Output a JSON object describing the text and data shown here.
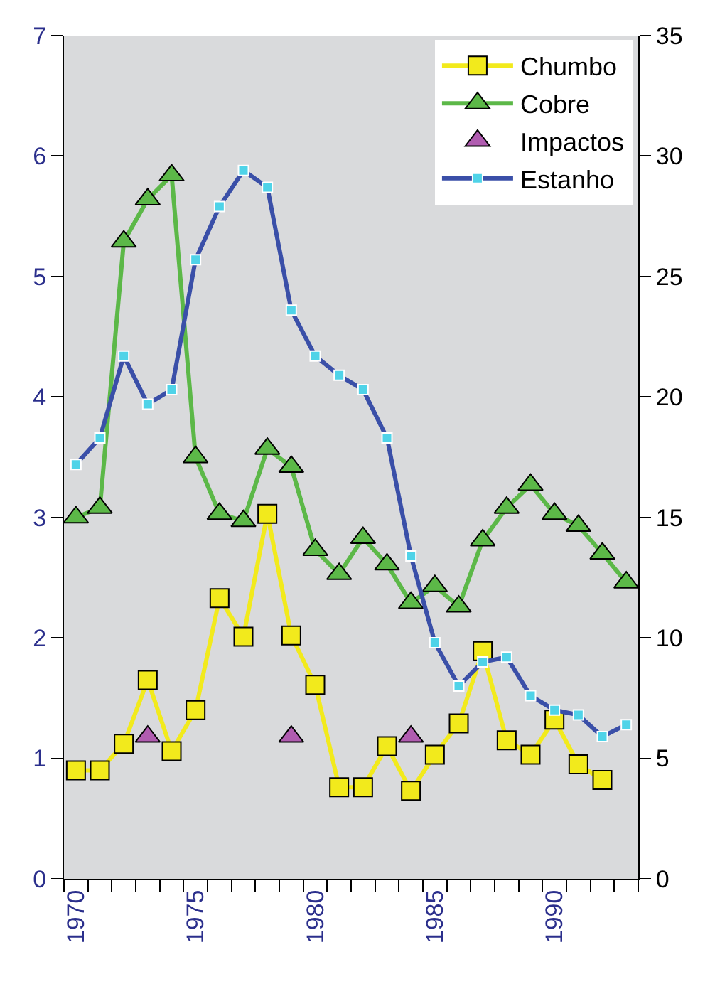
{
  "chart_data": {
    "type": "line",
    "x": [
      1970,
      1971,
      1972,
      1973,
      1974,
      1975,
      1976,
      1977,
      1978,
      1979,
      1980,
      1981,
      1982,
      1983,
      1984,
      1985,
      1986,
      1987,
      1988,
      1989,
      1990,
      1991,
      1992,
      1993
    ],
    "xlim": [
      1969.5,
      1993.5
    ],
    "xticks": [
      {
        "value": 1970,
        "label": "1970"
      },
      {
        "value": 1975,
        "label": "1975"
      },
      {
        "value": 1980,
        "label": "1980"
      },
      {
        "value": 1985,
        "label": "1985"
      },
      {
        "value": 1990,
        "label": "1990"
      },
      {
        "value": 1969.5,
        "label": null
      },
      {
        "value": 1970.5,
        "label": null
      },
      {
        "value": 1971.5,
        "label": null
      },
      {
        "value": 1972.5,
        "label": null
      },
      {
        "value": 1973.5,
        "label": null
      },
      {
        "value": 1974.5,
        "label": null
      },
      {
        "value": 1975.5,
        "label": null
      },
      {
        "value": 1976.5,
        "label": null
      },
      {
        "value": 1977.5,
        "label": null
      },
      {
        "value": 1978.5,
        "label": null
      },
      {
        "value": 1979.5,
        "label": null
      },
      {
        "value": 1980.5,
        "label": null
      },
      {
        "value": 1981.5,
        "label": null
      },
      {
        "value": 1982.5,
        "label": null
      },
      {
        "value": 1983.5,
        "label": null
      },
      {
        "value": 1984.5,
        "label": null
      },
      {
        "value": 1985.5,
        "label": null
      },
      {
        "value": 1986.5,
        "label": null
      },
      {
        "value": 1987.5,
        "label": null
      },
      {
        "value": 1988.5,
        "label": null
      },
      {
        "value": 1989.5,
        "label": null
      },
      {
        "value": 1990.5,
        "label": null
      },
      {
        "value": 1991.5,
        "label": null
      },
      {
        "value": 1992.5,
        "label": null
      },
      {
        "value": 1993.5,
        "label": null
      }
    ],
    "ylim": [
      0,
      7
    ],
    "yticks": [
      0,
      1,
      2,
      3,
      4,
      5,
      6,
      7
    ],
    "y2lim": [
      0,
      35
    ],
    "y2ticks": [
      0,
      5,
      10,
      15,
      20,
      25,
      30,
      35
    ],
    "grid": false,
    "legend": "top right",
    "series": [
      {
        "name": "Chumbo",
        "color": "#f2ea1c",
        "marker": "square",
        "values": [
          0.9,
          0.9,
          1.12,
          1.65,
          1.06,
          1.4,
          2.33,
          2.01,
          3.03,
          2.02,
          1.61,
          0.76,
          0.76,
          1.1,
          0.73,
          1.03,
          1.29,
          1.89,
          1.15,
          1.03,
          1.32,
          0.95,
          0.82,
          null
        ]
      },
      {
        "name": "Cobre",
        "color": "#5cb848",
        "marker": "triangle",
        "values": [
          3.0,
          3.08,
          5.29,
          5.64,
          5.84,
          3.5,
          3.03,
          2.97,
          3.57,
          3.42,
          2.73,
          2.53,
          2.83,
          2.61,
          2.29,
          2.43,
          2.26,
          2.81,
          3.08,
          3.27,
          3.03,
          2.93,
          2.7,
          2.46
        ]
      },
      {
        "name": "Impactos",
        "type": "scatter",
        "color": "#b05cb0",
        "marker": "triangle",
        "x": [
          1973,
          1979,
          1984
        ],
        "values": [
          1.18,
          1.18,
          1.18
        ]
      },
      {
        "name": "Estanho",
        "color": "#3a4fa8",
        "marker": "square",
        "axis": "y2",
        "values": [
          17.2,
          18.3,
          21.7,
          19.7,
          20.3,
          25.7,
          27.9,
          29.4,
          28.7,
          23.6,
          21.7,
          20.9,
          20.3,
          18.3,
          13.4,
          9.8,
          8.0,
          9.0,
          9.2,
          7.6,
          7.0,
          6.8,
          5.9,
          6.4
        ]
      }
    ]
  }
}
